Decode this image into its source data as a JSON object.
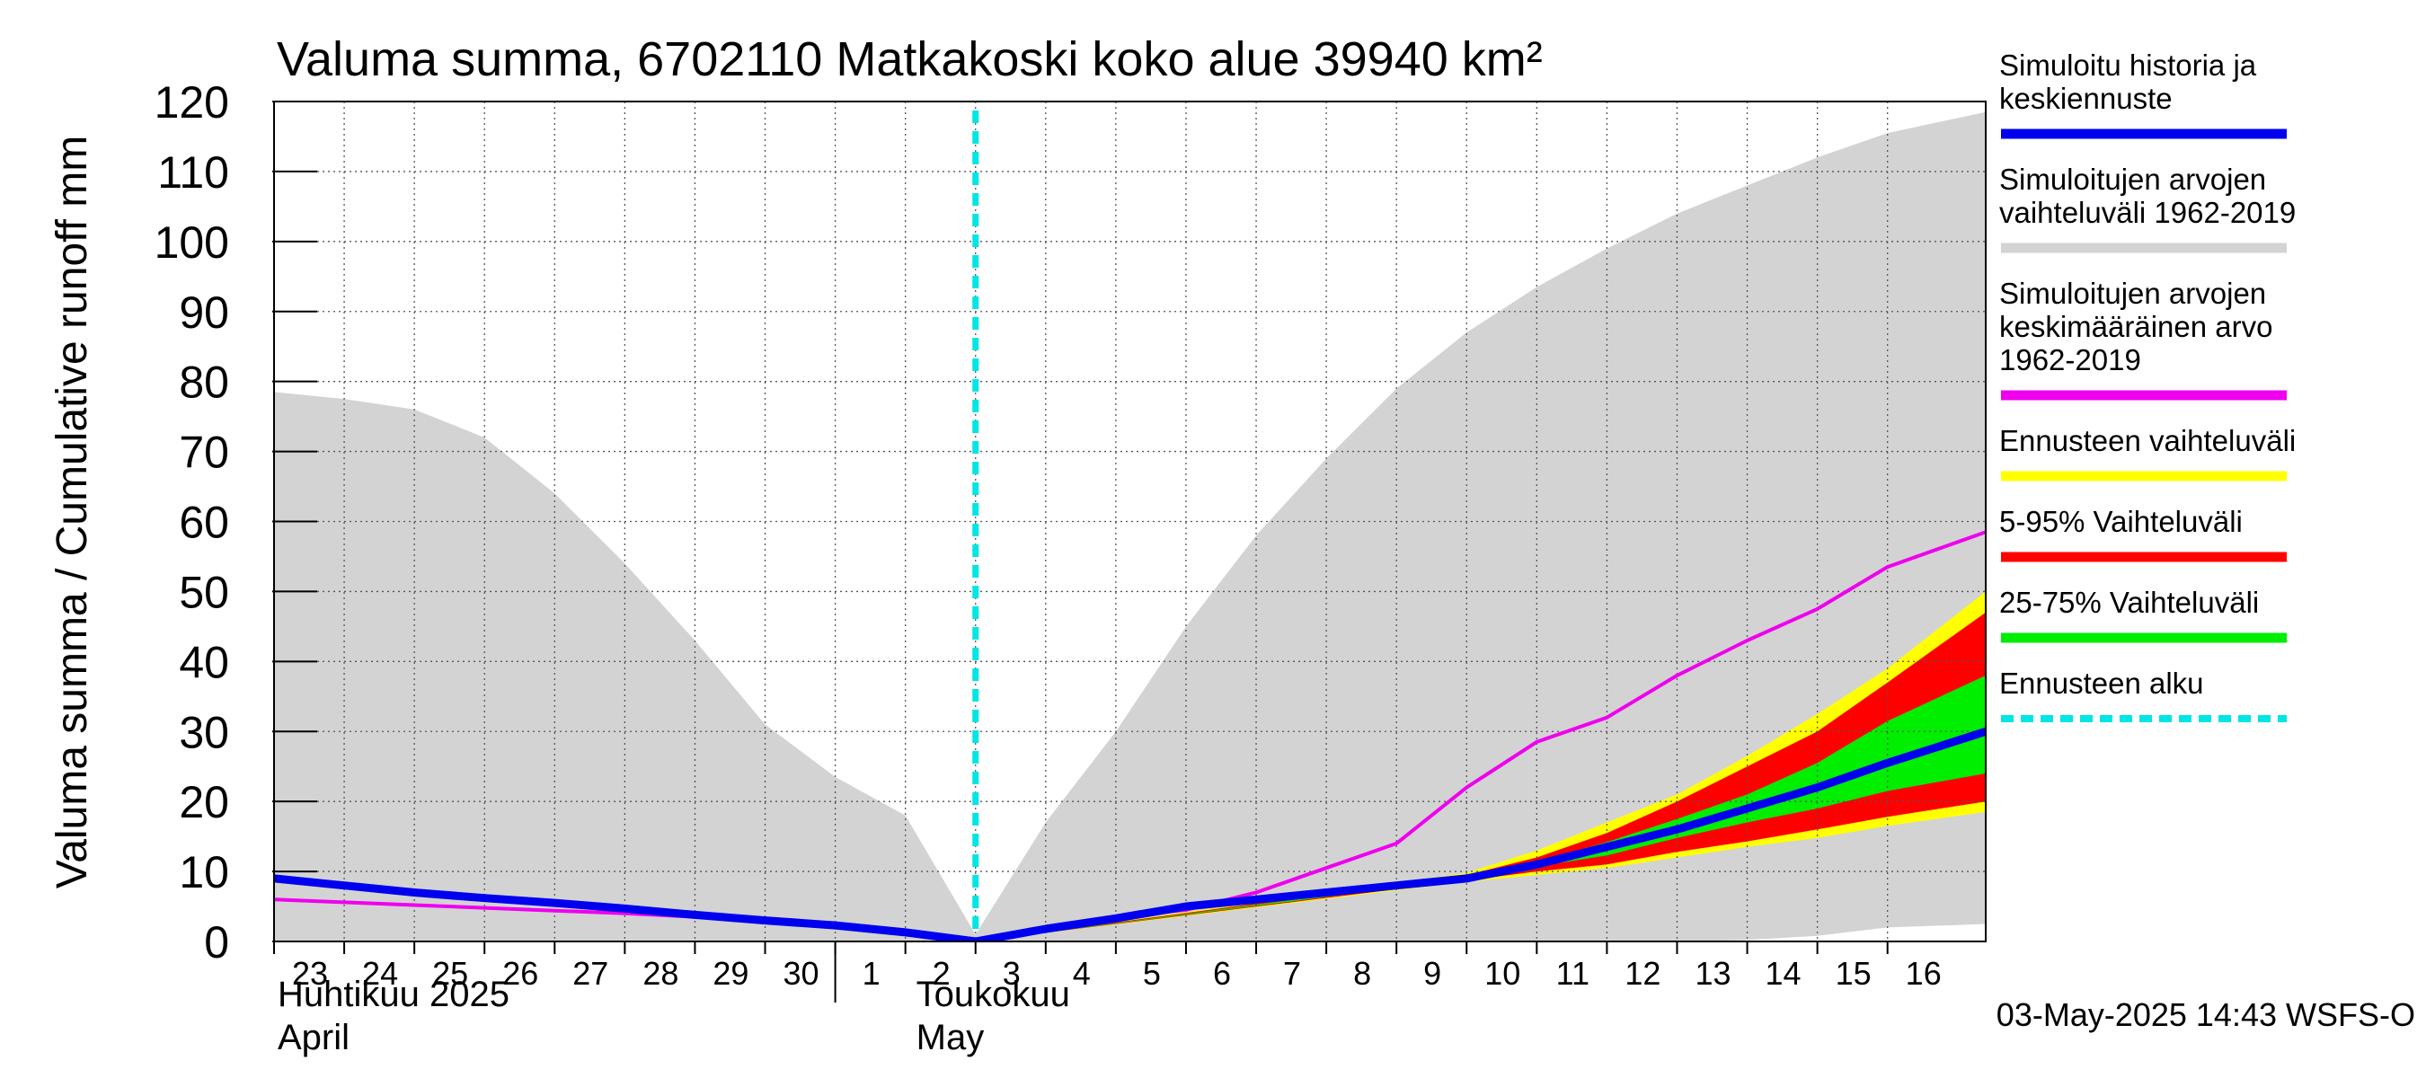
{
  "chart_data": {
    "type": "area",
    "title": "Valuma summa, 6702110 Matkakoski koko alue 39940 km²",
    "ylabel": "Valuma summa / Cumulative runoff    mm",
    "ylim": [
      0,
      120
    ],
    "xlim": [
      0,
      24.4
    ],
    "yticks": [
      0,
      10,
      20,
      30,
      40,
      50,
      60,
      70,
      80,
      90,
      100,
      110,
      120
    ],
    "grid": true,
    "xticks": [
      {
        "x": 0,
        "label": "23"
      },
      {
        "x": 1,
        "label": "24"
      },
      {
        "x": 2,
        "label": "25"
      },
      {
        "x": 3,
        "label": "26"
      },
      {
        "x": 4,
        "label": "27"
      },
      {
        "x": 5,
        "label": "28"
      },
      {
        "x": 6,
        "label": "29"
      },
      {
        "x": 7,
        "label": "30"
      },
      {
        "x": 8,
        "label": "1"
      },
      {
        "x": 9,
        "label": "2"
      },
      {
        "x": 10,
        "label": "3"
      },
      {
        "x": 11,
        "label": "4"
      },
      {
        "x": 12,
        "label": "5"
      },
      {
        "x": 13,
        "label": "6"
      },
      {
        "x": 14,
        "label": "7"
      },
      {
        "x": 15,
        "label": "8"
      },
      {
        "x": 16,
        "label": "9"
      },
      {
        "x": 17,
        "label": "10"
      },
      {
        "x": 18,
        "label": "11"
      },
      {
        "x": 19,
        "label": "12"
      },
      {
        "x": 20,
        "label": "13"
      },
      {
        "x": 21,
        "label": "14"
      },
      {
        "x": 22,
        "label": "15"
      },
      {
        "x": 23,
        "label": "16"
      }
    ],
    "month_labels": [
      {
        "x": 0,
        "fi": "Huhtikuu  2025",
        "en": "April"
      },
      {
        "x": 9,
        "fi": "Toukokuu",
        "en": "May"
      }
    ],
    "month_divider_x": 8,
    "forecast_start_x": 10,
    "x": [
      0,
      1,
      2,
      3,
      4,
      5,
      6,
      7,
      8,
      9,
      10,
      11,
      12,
      13,
      14,
      15,
      16,
      17,
      18,
      19,
      20,
      21,
      22,
      23,
      24.4
    ],
    "series": [
      {
        "name": "Simuloitujen arvojen vaihteluväli 1962-2019",
        "color": "#d3d3d3",
        "kind": "band",
        "lower": [
          0,
          0,
          0,
          0,
          0,
          0,
          0,
          0,
          0,
          0,
          0,
          0,
          0,
          0,
          0,
          0,
          0,
          0,
          0,
          0,
          0,
          0.2,
          0.8,
          2.0,
          2.5
        ],
        "upper": [
          78.5,
          77.5,
          76,
          72,
          64,
          54,
          43,
          31,
          23.5,
          18,
          1,
          17,
          30,
          45,
          58,
          69,
          79,
          87,
          93.5,
          99,
          104,
          108,
          112,
          115.5,
          118.5
        ]
      },
      {
        "name": "Ennusteen vaihteluväli",
        "color": "#ffff00",
        "kind": "band",
        "lower": [
          null,
          null,
          null,
          null,
          null,
          null,
          null,
          null,
          null,
          null,
          0,
          null,
          null,
          null,
          null,
          null,
          null,
          8.5,
          9.5,
          10.5,
          12,
          13.5,
          14.8,
          16.5,
          18.5
        ],
        "upper": [
          null,
          null,
          null,
          null,
          null,
          null,
          null,
          null,
          null,
          null,
          0,
          null,
          null,
          null,
          null,
          null,
          null,
          9.8,
          13,
          17,
          21,
          26.5,
          32.5,
          39,
          50
        ]
      },
      {
        "name": "5-95% Vaihteluväli",
        "color": "#ff0000",
        "kind": "band",
        "lower": [
          null,
          null,
          null,
          null,
          null,
          null,
          null,
          null,
          null,
          null,
          0,
          null,
          null,
          null,
          null,
          null,
          null,
          8.7,
          10,
          11,
          12.8,
          14.3,
          16,
          17.8,
          20
        ],
        "upper": [
          null,
          null,
          null,
          null,
          null,
          null,
          null,
          null,
          null,
          null,
          0,
          null,
          null,
          null,
          null,
          null,
          null,
          9.5,
          12,
          15.5,
          20,
          25,
          30,
          37,
          47
        ]
      },
      {
        "name": "25-75% Vaihteluväli",
        "color": "#00ee00",
        "kind": "band",
        "lower": [
          null,
          null,
          null,
          null,
          null,
          null,
          null,
          null,
          null,
          null,
          0,
          null,
          null,
          null,
          null,
          null,
          null,
          8.9,
          10.7,
          12.3,
          14.8,
          17,
          19,
          21.5,
          24
        ],
        "upper": [
          null,
          null,
          null,
          null,
          null,
          null,
          null,
          null,
          null,
          null,
          0,
          null,
          null,
          null,
          null,
          null,
          null,
          9.2,
          11.4,
          14.2,
          17.5,
          21,
          25.5,
          31.5,
          38
        ]
      },
      {
        "name": "Simuloitujen arvojen keskimääräinen arvo 1962-2019",
        "color": "#ee00ee",
        "kind": "line",
        "width": 4,
        "values": [
          6,
          5.6,
          5.2,
          4.8,
          4.4,
          4,
          3.5,
          3,
          2.2,
          1.5,
          0,
          2,
          3.5,
          4.5,
          7,
          10.5,
          14,
          22,
          28.5,
          32,
          38,
          43,
          47.5,
          53.5,
          58.5
        ]
      },
      {
        "name": "Simuloitu historia ja keskiennuste",
        "color": "#0000ee",
        "kind": "line",
        "width": 9,
        "values": [
          9,
          8,
          7,
          6.2,
          5.5,
          4.7,
          3.8,
          3,
          2.3,
          1.3,
          0,
          1.8,
          3.3,
          5,
          6,
          7,
          8,
          9,
          11,
          13.5,
          16,
          19,
          22,
          25.5,
          30
        ]
      }
    ],
    "legend_position": "right",
    "legend": [
      {
        "lines": [
          "Simuloitu historia ja",
          "keskiennuste"
        ],
        "color": "#0000ee",
        "style": "solid"
      },
      {
        "lines": [
          "Simuloitujen arvojen",
          "vaihteluväli 1962-2019"
        ],
        "color": "#d3d3d3",
        "style": "solid"
      },
      {
        "lines": [
          "Simuloitujen arvojen",
          "keskimääräinen arvo",
          "   1962-2019"
        ],
        "color": "#ee00ee",
        "style": "solid"
      },
      {
        "lines": [
          "Ennusteen vaihteluväli"
        ],
        "color": "#ffff00",
        "style": "solid"
      },
      {
        "lines": [
          "5-95% Vaihteluväli"
        ],
        "color": "#ff0000",
        "style": "solid"
      },
      {
        "lines": [
          "25-75% Vaihteluväli"
        ],
        "color": "#00ee00",
        "style": "solid"
      },
      {
        "lines": [
          "Ennusteen alku"
        ],
        "color": "#00e5e5",
        "style": "dashed"
      }
    ],
    "footer": "03-May-2025 14:43 WSFS-O"
  }
}
